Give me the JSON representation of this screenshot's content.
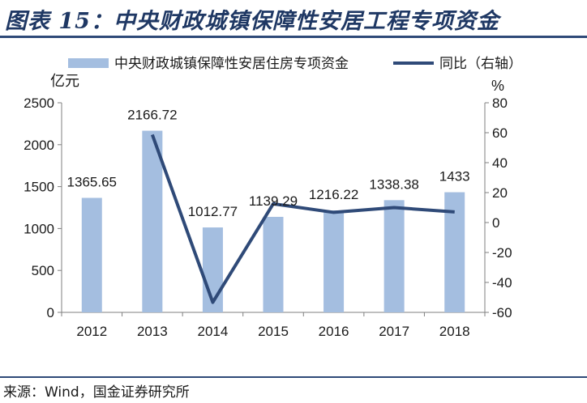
{
  "header": {
    "title": "图表 15：中央财政城镇保障性安居工程专项资金"
  },
  "footer": {
    "source": "来源：Wind，国金证券研究所"
  },
  "colors": {
    "bar": "#a4bee0",
    "line": "#2f4a78",
    "title": "#1f3864",
    "axis": "#7f7f7f"
  },
  "chart_data": {
    "type": "bar",
    "categories": [
      "2012",
      "2013",
      "2014",
      "2015",
      "2016",
      "2017",
      "2018"
    ],
    "series": [
      {
        "name": "中央财政城镇保障性安居住房专项资金",
        "type": "bar",
        "axis": "left",
        "values": [
          1365.65,
          2166.72,
          1012.77,
          1139.29,
          1216.22,
          1338.38,
          1433
        ]
      },
      {
        "name": "同比（右轴）",
        "type": "line",
        "axis": "right",
        "values": [
          null,
          58.7,
          -53.3,
          12.5,
          6.8,
          10.0,
          7.1
        ]
      }
    ],
    "data_labels": [
      "1365.65",
      "2166.72",
      "1012.77",
      "1139.29",
      "1216.22",
      "1338.38",
      "1433"
    ],
    "ylabel": "亿元",
    "ylabel_right": "%",
    "ylim": [
      0,
      2500
    ],
    "ylim_right": [
      -60,
      80
    ],
    "yticks": [
      0,
      500,
      1000,
      1500,
      2000,
      2500
    ],
    "yticks_right": [
      -60,
      -40,
      -20,
      0,
      20,
      40,
      60,
      80
    ],
    "legend_position": "top",
    "grid": false
  }
}
